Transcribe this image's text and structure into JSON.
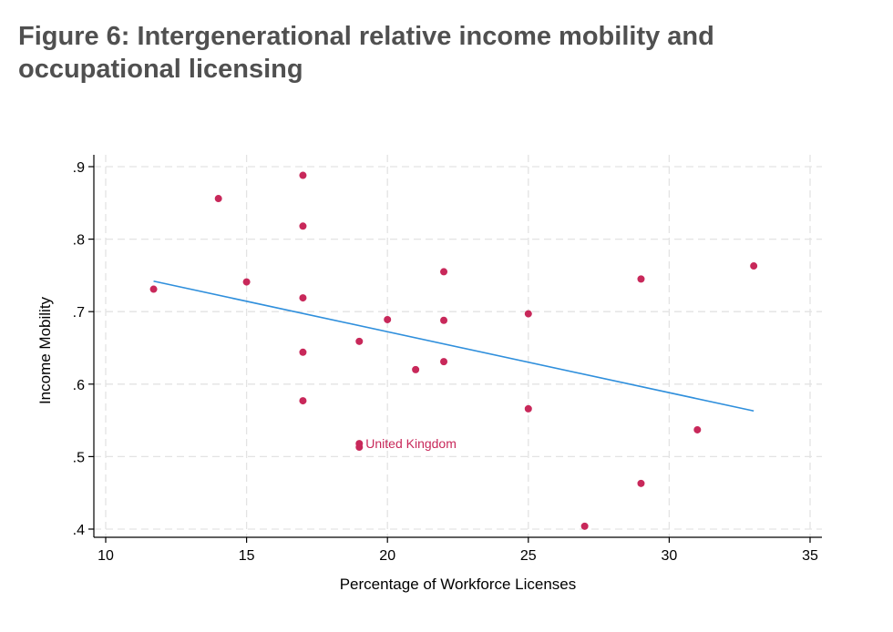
{
  "figure": {
    "title": "Figure 6: Intergenerational relative income mobility and occupational licensing"
  },
  "colors": {
    "points": "#c8285a",
    "fit_line": "#2f8fdc",
    "grid": "#e3e3e3",
    "axis": "#000000",
    "title": "#505050"
  },
  "chart_data": {
    "type": "scatter",
    "title": "Figure 6: Intergenerational relative income mobility and occupational licensing",
    "xlabel": "Percentage of Workforce Licenses",
    "ylabel": "Income Mobility",
    "xlim": [
      10,
      35
    ],
    "ylim": [
      0.4,
      0.9
    ],
    "xticks": [
      10,
      15,
      20,
      25,
      30,
      35
    ],
    "xtick_labels": [
      "10",
      "15",
      "20",
      "25",
      "30",
      "35"
    ],
    "yticks": [
      0.4,
      0.5,
      0.6,
      0.7,
      0.8,
      0.9
    ],
    "ytick_labels": [
      ".4",
      ".5",
      ".6",
      ".7",
      ".8",
      ".9"
    ],
    "grid": true,
    "points": [
      {
        "x": 11.7,
        "y": 0.731
      },
      {
        "x": 14.0,
        "y": 0.856
      },
      {
        "x": 15.0,
        "y": 0.741
      },
      {
        "x": 17.0,
        "y": 0.888
      },
      {
        "x": 17.0,
        "y": 0.818
      },
      {
        "x": 17.0,
        "y": 0.719
      },
      {
        "x": 17.0,
        "y": 0.644
      },
      {
        "x": 17.0,
        "y": 0.577
      },
      {
        "x": 19.0,
        "y": 0.659
      },
      {
        "x": 19.0,
        "y": 0.518
      },
      {
        "x": 19.0,
        "y": 0.513
      },
      {
        "x": 20.0,
        "y": 0.689
      },
      {
        "x": 21.0,
        "y": 0.62
      },
      {
        "x": 22.0,
        "y": 0.755
      },
      {
        "x": 22.0,
        "y": 0.688
      },
      {
        "x": 22.0,
        "y": 0.631
      },
      {
        "x": 25.0,
        "y": 0.697
      },
      {
        "x": 25.0,
        "y": 0.566
      },
      {
        "x": 27.0,
        "y": 0.404
      },
      {
        "x": 29.0,
        "y": 0.745
      },
      {
        "x": 29.0,
        "y": 0.463
      },
      {
        "x": 31.0,
        "y": 0.537
      },
      {
        "x": 33.0,
        "y": 0.763
      }
    ],
    "fit_line": {
      "x": [
        11.7,
        33.0
      ],
      "y": [
        0.742,
        0.563
      ]
    },
    "annotations": [
      {
        "text": "United Kingdom",
        "x": 19.0,
        "y": 0.518
      }
    ]
  }
}
